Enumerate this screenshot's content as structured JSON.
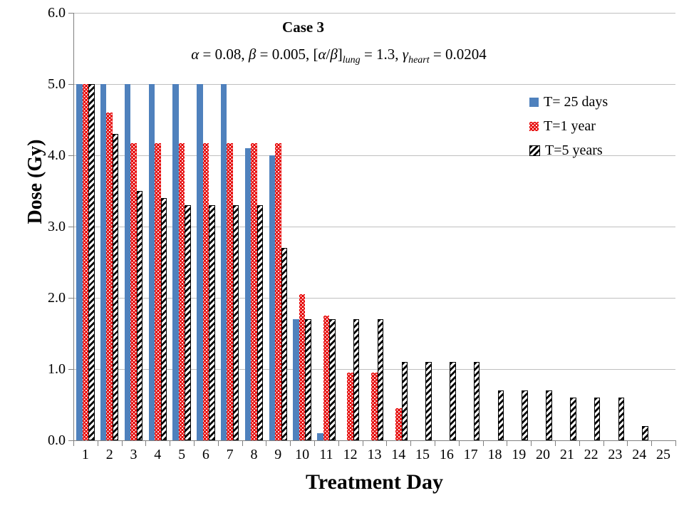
{
  "formula": {
    "plain": "α = 0.08, β = 0.005, [α/β]_lung = 1.3, γ_heart = 0.0204",
    "segments": [
      {
        "text": "α",
        "italic": true,
        "sub": false
      },
      {
        "text": " = 0.08, ",
        "italic": false,
        "sub": false
      },
      {
        "text": "β",
        "italic": true,
        "sub": false
      },
      {
        "text": " = 0.005, [",
        "italic": false,
        "sub": false
      },
      {
        "text": "α",
        "italic": true,
        "sub": false
      },
      {
        "text": "/",
        "italic": false,
        "sub": false
      },
      {
        "text": "β",
        "italic": true,
        "sub": false
      },
      {
        "text": "]",
        "italic": false,
        "sub": false
      },
      {
        "text": "lung",
        "italic": true,
        "sub": true
      },
      {
        "text": " = 1.3, ",
        "italic": false,
        "sub": false
      },
      {
        "text": "γ",
        "italic": true,
        "sub": false
      },
      {
        "text": "heart",
        "italic": true,
        "sub": true
      },
      {
        "text": " = 0.0204",
        "italic": false,
        "sub": false
      }
    ]
  },
  "chart_data": {
    "type": "bar",
    "title": "Case 3",
    "subtitle": "α = 0.08, β = 0.005, [α/β]_lung = 1.3, γ_heart = 0.0204",
    "xlabel": "Treatment Day",
    "ylabel": "Dose (Gy)",
    "ylim": [
      0.0,
      6.0
    ],
    "ytick_interval": 1.0,
    "ytick_labels": [
      "6.0",
      "5.0",
      "4.0",
      "3.0",
      "2.0",
      "1.0",
      "0.0"
    ],
    "grid": true,
    "legend_position": "inside-top-right",
    "categories": [
      1,
      2,
      3,
      4,
      5,
      6,
      7,
      8,
      9,
      10,
      11,
      12,
      13,
      14,
      15,
      16,
      17,
      18,
      19,
      20,
      21,
      22,
      23,
      24,
      25
    ],
    "series": [
      {
        "name": "T= 25 days",
        "pattern": "solid",
        "color": "#4F81BD",
        "values": [
          5.0,
          5.0,
          5.0,
          5.0,
          5.0,
          5.0,
          5.0,
          4.1,
          4.0,
          1.7,
          0.1,
          0,
          0,
          0,
          0,
          0,
          0,
          0,
          0,
          0,
          0,
          0,
          0,
          0,
          0
        ]
      },
      {
        "name": "T=1 year",
        "pattern": "dots",
        "color": "#E60000",
        "values": [
          5.0,
          4.6,
          4.17,
          4.17,
          4.17,
          4.17,
          4.17,
          4.17,
          4.17,
          2.05,
          1.75,
          0.95,
          0.95,
          0.45,
          0,
          0,
          0,
          0,
          0,
          0,
          0,
          0,
          0,
          0,
          0
        ]
      },
      {
        "name": "T=5 years",
        "pattern": "diagonal-hatch",
        "color": "#000000",
        "values": [
          5.0,
          4.3,
          3.5,
          3.4,
          3.3,
          3.3,
          3.3,
          3.3,
          2.7,
          1.7,
          1.7,
          1.7,
          1.7,
          1.1,
          1.1,
          1.1,
          1.1,
          0.7,
          0.7,
          0.7,
          0.6,
          0.6,
          0.6,
          0.2,
          0
        ]
      }
    ],
    "colors": {
      "grid": "#BFBFBF",
      "axis": "#808080",
      "text": "#000000"
    }
  }
}
